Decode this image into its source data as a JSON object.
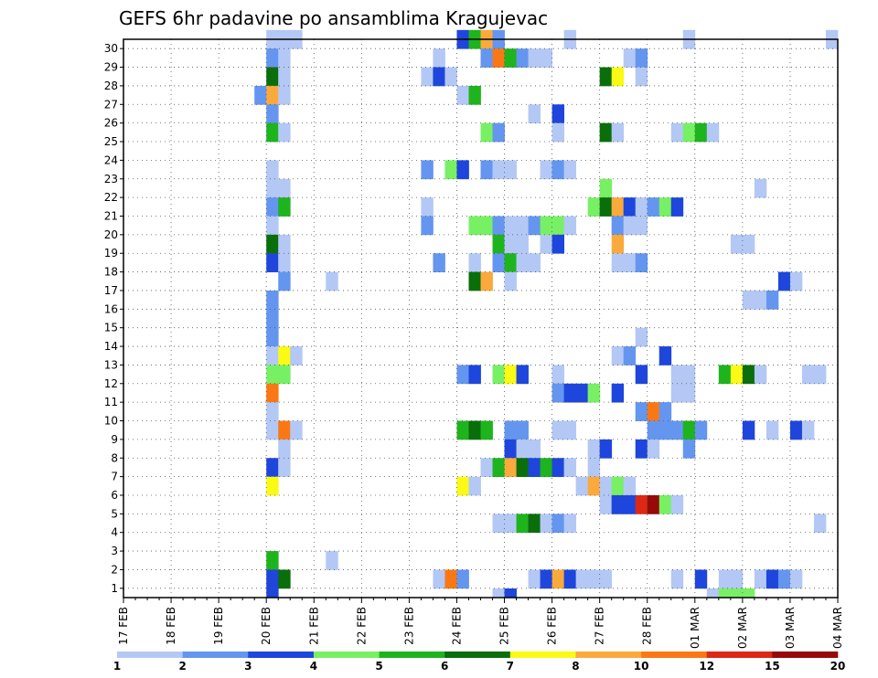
{
  "chart_data": {
    "type": "heatmap",
    "title": "GEFS 6hr padavine po ansamblima Kragujevac",
    "xlabel": "",
    "ylabel": "",
    "x_tick_labels": [
      "17 FEB",
      "18 FEB",
      "19 FEB",
      "20 FEB",
      "21 FEB",
      "22 FEB",
      "23 FEB",
      "24 FEB",
      "25 FEB",
      "26 FEB",
      "27 FEB",
      "28 FEB",
      "01 MAR",
      "02 MAR",
      "03 MAR",
      "04 MAR"
    ],
    "y_tick_labels": [
      "1",
      "2",
      "3",
      "4",
      "5",
      "6",
      "7",
      "8",
      "9",
      "10",
      "11",
      "12",
      "13",
      "14",
      "15",
      "16",
      "17",
      "18",
      "19",
      "20",
      "21",
      "22",
      "23",
      "24",
      "25",
      "26",
      "27",
      "28",
      "29",
      "30"
    ],
    "x_unit": "6-hour step from 17 FEB 00z",
    "x_range": [
      0,
      60
    ],
    "y_range": [
      0,
      30
    ],
    "grid": true,
    "colorbar_labels": [
      "1",
      "2",
      "3",
      "4",
      "5",
      "6",
      "7",
      "8",
      "10",
      "12",
      "15",
      "20"
    ],
    "colorbar_colors": [
      "#b4c8f5",
      "#6496f0",
      "#1e46dc",
      "#78f064",
      "#1eb41e",
      "#0a6e0a",
      "#fafa14",
      "#faaa3c",
      "#fa7814",
      "#dc2814",
      "#960a0a"
    ],
    "cells": [
      [
        12,
        30,
        1
      ],
      [
        13,
        30,
        1
      ],
      [
        14,
        30,
        1
      ],
      [
        28,
        30,
        3
      ],
      [
        29,
        30,
        5
      ],
      [
        30,
        30,
        8
      ],
      [
        31,
        30,
        2
      ],
      [
        37,
        30,
        1
      ],
      [
        47,
        30,
        1
      ],
      [
        59,
        30,
        1
      ],
      [
        26,
        29,
        1
      ],
      [
        12,
        29,
        2
      ],
      [
        13,
        29,
        1
      ],
      [
        30,
        29,
        2
      ],
      [
        31,
        29,
        9
      ],
      [
        32,
        29,
        5
      ],
      [
        33,
        29,
        2
      ],
      [
        34,
        29,
        1
      ],
      [
        35,
        29,
        1
      ],
      [
        42,
        29,
        1
      ],
      [
        43,
        29,
        2
      ],
      [
        25,
        28,
        1
      ],
      [
        12,
        28,
        6
      ],
      [
        13,
        28,
        1
      ],
      [
        26,
        28,
        3
      ],
      [
        27,
        28,
        1
      ],
      [
        40,
        28,
        6
      ],
      [
        41,
        28,
        7
      ],
      [
        43,
        28,
        1
      ],
      [
        11,
        27,
        2
      ],
      [
        12,
        27,
        8
      ],
      [
        13,
        27,
        1
      ],
      [
        28,
        27,
        1
      ],
      [
        29,
        27,
        5
      ],
      [
        12,
        26,
        2
      ],
      [
        34,
        26,
        1
      ],
      [
        36,
        26,
        3
      ],
      [
        12,
        25,
        5
      ],
      [
        13,
        25,
        1
      ],
      [
        30,
        25,
        4
      ],
      [
        31,
        25,
        2
      ],
      [
        36,
        25,
        1
      ],
      [
        40,
        25,
        6
      ],
      [
        41,
        25,
        1
      ],
      [
        46,
        25,
        1
      ],
      [
        47,
        25,
        4
      ],
      [
        48,
        25,
        5
      ],
      [
        49,
        25,
        1
      ],
      [
        12,
        23,
        1
      ],
      [
        25,
        23,
        2
      ],
      [
        27,
        23,
        4
      ],
      [
        28,
        23,
        3
      ],
      [
        30,
        23,
        2
      ],
      [
        31,
        23,
        1
      ],
      [
        32,
        23,
        1
      ],
      [
        35,
        23,
        1
      ],
      [
        36,
        23,
        2
      ],
      [
        37,
        23,
        1
      ],
      [
        12,
        22,
        1
      ],
      [
        13,
        22,
        1
      ],
      [
        40,
        22,
        4
      ],
      [
        53,
        22,
        1
      ],
      [
        12,
        21,
        2
      ],
      [
        13,
        21,
        5
      ],
      [
        25,
        21,
        1
      ],
      [
        39,
        21,
        4
      ],
      [
        40,
        21,
        6
      ],
      [
        41,
        21,
        8
      ],
      [
        42,
        21,
        3
      ],
      [
        43,
        21,
        1
      ],
      [
        44,
        21,
        2
      ],
      [
        45,
        21,
        4
      ],
      [
        46,
        21,
        3
      ],
      [
        12,
        20,
        1
      ],
      [
        25,
        20,
        2
      ],
      [
        29,
        20,
        4
      ],
      [
        30,
        20,
        4
      ],
      [
        31,
        20,
        2
      ],
      [
        32,
        20,
        1
      ],
      [
        33,
        20,
        1
      ],
      [
        34,
        20,
        2
      ],
      [
        35,
        20,
        4
      ],
      [
        36,
        20,
        4
      ],
      [
        37,
        20,
        1
      ],
      [
        41,
        20,
        2
      ],
      [
        42,
        20,
        1
      ],
      [
        43,
        20,
        1
      ],
      [
        12,
        19,
        6
      ],
      [
        13,
        19,
        1
      ],
      [
        31,
        19,
        5
      ],
      [
        32,
        19,
        1
      ],
      [
        33,
        19,
        1
      ],
      [
        35,
        19,
        1
      ],
      [
        36,
        19,
        3
      ],
      [
        41,
        19,
        8
      ],
      [
        51,
        19,
        1
      ],
      [
        52,
        19,
        1
      ],
      [
        12,
        18,
        3
      ],
      [
        13,
        18,
        1
      ],
      [
        26,
        18,
        2
      ],
      [
        29,
        18,
        1
      ],
      [
        31,
        18,
        2
      ],
      [
        32,
        18,
        5
      ],
      [
        33,
        18,
        1
      ],
      [
        34,
        18,
        1
      ],
      [
        41,
        18,
        1
      ],
      [
        42,
        18,
        1
      ],
      [
        43,
        18,
        2
      ],
      [
        13,
        17,
        2
      ],
      [
        17,
        17,
        1
      ],
      [
        29,
        17,
        6
      ],
      [
        30,
        17,
        8
      ],
      [
        32,
        17,
        1
      ],
      [
        55,
        17,
        3
      ],
      [
        56,
        17,
        1
      ],
      [
        12,
        16,
        2
      ],
      [
        52,
        16,
        1
      ],
      [
        53,
        16,
        1
      ],
      [
        54,
        16,
        2
      ],
      [
        12,
        15,
        2
      ],
      [
        12,
        14,
        2
      ],
      [
        43,
        14,
        1
      ],
      [
        12,
        13,
        1
      ],
      [
        13,
        13,
        7
      ],
      [
        14,
        13,
        1
      ],
      [
        41,
        13,
        1
      ],
      [
        42,
        13,
        2
      ],
      [
        45,
        13,
        3
      ],
      [
        12,
        12,
        4
      ],
      [
        13,
        12,
        4
      ],
      [
        28,
        12,
        2
      ],
      [
        29,
        12,
        3
      ],
      [
        31,
        12,
        4
      ],
      [
        32,
        12,
        7
      ],
      [
        33,
        12,
        3
      ],
      [
        36,
        12,
        1
      ],
      [
        43,
        12,
        3
      ],
      [
        46,
        12,
        1
      ],
      [
        47,
        12,
        1
      ],
      [
        50,
        12,
        5
      ],
      [
        51,
        12,
        7
      ],
      [
        52,
        12,
        6
      ],
      [
        53,
        12,
        1
      ],
      [
        57,
        12,
        1
      ],
      [
        58,
        12,
        1
      ],
      [
        12,
        11,
        9
      ],
      [
        36,
        11,
        2
      ],
      [
        37,
        11,
        3
      ],
      [
        38,
        11,
        3
      ],
      [
        39,
        11,
        4
      ],
      [
        41,
        11,
        3
      ],
      [
        46,
        11,
        1
      ],
      [
        47,
        11,
        1
      ],
      [
        12,
        10,
        1
      ],
      [
        43,
        10,
        2
      ],
      [
        44,
        10,
        9
      ],
      [
        45,
        10,
        2
      ],
      [
        12,
        9,
        1
      ],
      [
        13,
        9,
        9
      ],
      [
        14,
        9,
        1
      ],
      [
        28,
        9,
        5
      ],
      [
        29,
        9,
        6
      ],
      [
        30,
        9,
        5
      ],
      [
        32,
        9,
        2
      ],
      [
        33,
        9,
        2
      ],
      [
        36,
        9,
        1
      ],
      [
        37,
        9,
        1
      ],
      [
        44,
        9,
        2
      ],
      [
        45,
        9,
        2
      ],
      [
        46,
        9,
        2
      ],
      [
        47,
        9,
        5
      ],
      [
        48,
        9,
        2
      ],
      [
        52,
        9,
        3
      ],
      [
        54,
        9,
        1
      ],
      [
        56,
        9,
        3
      ],
      [
        57,
        9,
        1
      ],
      [
        13,
        8,
        1
      ],
      [
        32,
        8,
        3
      ],
      [
        33,
        8,
        1
      ],
      [
        34,
        8,
        1
      ],
      [
        39,
        8,
        1
      ],
      [
        40,
        8,
        3
      ],
      [
        43,
        8,
        3
      ],
      [
        44,
        8,
        1
      ],
      [
        47,
        8,
        2
      ],
      [
        12,
        7,
        3
      ],
      [
        13,
        7,
        1
      ],
      [
        30,
        7,
        1
      ],
      [
        31,
        7,
        5
      ],
      [
        32,
        7,
        8
      ],
      [
        33,
        7,
        6
      ],
      [
        34,
        7,
        3
      ],
      [
        35,
        7,
        5
      ],
      [
        36,
        7,
        3
      ],
      [
        37,
        7,
        1
      ],
      [
        39,
        7,
        1
      ],
      [
        12,
        6,
        7
      ],
      [
        28,
        6,
        7
      ],
      [
        29,
        6,
        1
      ],
      [
        38,
        6,
        1
      ],
      [
        39,
        6,
        8
      ],
      [
        40,
        6,
        1
      ],
      [
        41,
        6,
        4
      ],
      [
        42,
        6,
        1
      ],
      [
        40,
        5,
        1
      ],
      [
        41,
        5,
        3
      ],
      [
        42,
        5,
        3
      ],
      [
        43,
        5,
        10
      ],
      [
        44,
        5,
        11
      ],
      [
        45,
        5,
        4
      ],
      [
        46,
        5,
        1
      ],
      [
        31,
        4,
        1
      ],
      [
        32,
        4,
        1
      ],
      [
        33,
        4,
        5
      ],
      [
        34,
        4,
        6
      ],
      [
        35,
        4,
        1
      ],
      [
        36,
        4,
        2
      ],
      [
        37,
        4,
        1
      ],
      [
        58,
        4,
        1
      ],
      [
        12,
        2,
        5
      ],
      [
        17,
        2,
        1
      ],
      [
        12,
        1,
        3
      ],
      [
        13,
        1,
        6
      ],
      [
        26,
        1,
        1
      ],
      [
        27,
        1,
        9
      ],
      [
        28,
        1,
        2
      ],
      [
        34,
        1,
        1
      ],
      [
        35,
        1,
        3
      ],
      [
        36,
        1,
        8
      ],
      [
        37,
        1,
        3
      ],
      [
        38,
        1,
        1
      ],
      [
        39,
        1,
        1
      ],
      [
        40,
        1,
        1
      ],
      [
        46,
        1,
        1
      ],
      [
        48,
        1,
        3
      ],
      [
        50,
        1,
        1
      ],
      [
        51,
        1,
        1
      ],
      [
        53,
        1,
        1
      ],
      [
        54,
        1,
        3
      ],
      [
        55,
        1,
        2
      ],
      [
        56,
        1,
        1
      ],
      [
        12,
        0,
        3
      ],
      [
        31,
        0,
        1
      ],
      [
        32,
        0,
        3
      ],
      [
        49,
        0,
        1
      ],
      [
        50,
        0,
        4
      ],
      [
        51,
        0,
        4
      ],
      [
        52,
        0,
        4
      ]
    ]
  }
}
